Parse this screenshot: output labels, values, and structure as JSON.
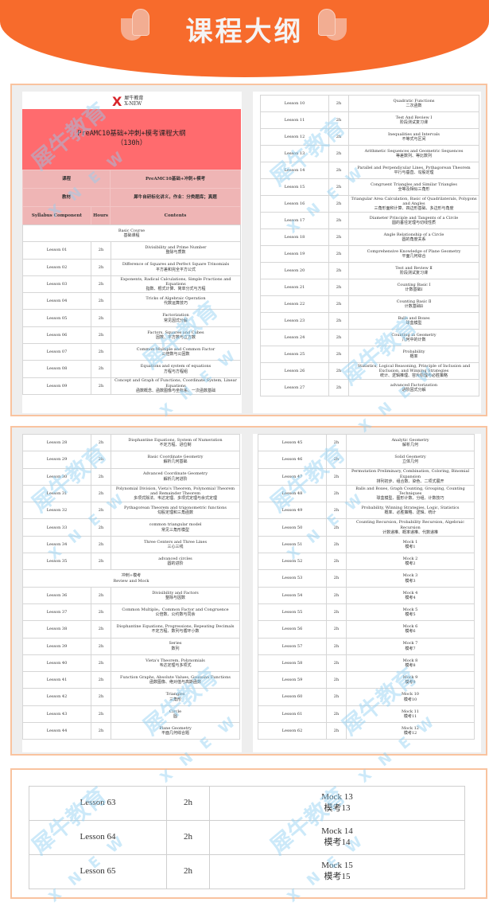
{
  "header": {
    "title": "课程大纲"
  },
  "logo": {
    "name": "犀牛教育",
    "sub": "X-NEW"
  },
  "watermark": {
    "text": "犀牛教育",
    "letters": "X N E W"
  },
  "syllabus": {
    "title_line1": "PreAMC10基础+冲刺+模考课程大纲",
    "title_line2": "（130h）",
    "course_label": "课程",
    "course_value": "PreAMC10基础+冲刺+模考",
    "material_label": "教材",
    "material_value": "犀牛自研标化讲义，作业：分类题库；真题",
    "col_component": "Syllabus Component",
    "col_hours": "Hours",
    "col_contents": "Contents"
  },
  "tables": {
    "p1l": [
      {
        "section_en": "Basic Course",
        "section_zh": "基础课程"
      },
      [
        "Lesson 01",
        "2h",
        "Divisibility and Prime Number",
        "整除与质数"
      ],
      [
        "Lesson 02",
        "2h",
        "Difference of Squares and Perfect Square Trinomials",
        "平方差和完全平方公式"
      ],
      [
        "Lesson 03",
        "2h",
        "Exponents, Radical Calculations, Simple Fractions and Equations",
        "指数、根式计算、简单分式与方程"
      ],
      [
        "Lesson 04",
        "2h",
        "Tricks of Algebraic Operation",
        "代数运算技巧"
      ],
      [
        "Lesson 05",
        "2h",
        "Factorization",
        "常见因式分解"
      ],
      [
        "Lesson 06",
        "2h",
        "Factors, Squares and Cubes",
        "因数、平方数与立方数"
      ],
      [
        "Lesson 07",
        "2h",
        "Common Multiple and Common Factor",
        "公倍数与公因数"
      ],
      [
        "Lesson 08",
        "2h",
        "Equations and system of equations",
        "方程与方程组"
      ],
      [
        "Lesson 09",
        "2h",
        "Concept and Graph of Functions, Coordinate System, Linear Equations",
        "函数概念、函数图像与坐标系、一次函数基础"
      ]
    ],
    "p1r": [
      [
        "Lesson 10",
        "2h",
        "Quadratic Functions",
        "二次函数"
      ],
      [
        "Lesson 11",
        "2h",
        "Test And Review Ⅰ",
        "阶段测试复习课"
      ],
      [
        "Lesson 12",
        "2h",
        "Inequalities and Intervals",
        "不等式与区间"
      ],
      [
        "Lesson 13",
        "2h",
        "Arithmetic Sequences and Geometric Sequences",
        "等差数列、等比数列"
      ],
      [
        "Lesson 14",
        "2h",
        "Parallel and Perpendicular Lines, Pythagorean Theorem",
        "平行与垂直、勾股定理"
      ],
      [
        "Lesson 15",
        "2h",
        "Congruent Triangles and Similar Triangles",
        "全等及相似三角形"
      ],
      [
        "Lesson 16",
        "2h",
        "Triangular Area Calculation, Basic of Quadrilaterals, Polygons and Angles",
        "三角形面积计算、四边形基础、多边形与角度"
      ],
      [
        "Lesson 17",
        "2h",
        "Diameter Principle and Tangents of a Circle",
        "圆的垂径定理与切线性质"
      ],
      [
        "Lesson 18",
        "2h",
        "Angle Relationship of a Circle",
        "圆的角度关系"
      ],
      [
        "Lesson 19",
        "2h",
        "Comprehensive Knowledge of Plane Geometry",
        "平面几何综合"
      ],
      [
        "Lesson 20",
        "2h",
        "Test and Review Ⅱ",
        "阶段测试复习课"
      ],
      [
        "Lesson 21",
        "2h",
        "Counting Basic Ⅰ",
        "计数基础Ⅰ"
      ],
      [
        "Lesson 22",
        "2h",
        "Counting Basic Ⅱ",
        "计数基础Ⅱ"
      ],
      [
        "Lesson 23",
        "2h",
        "Balls and Boxes",
        "球盒模型"
      ],
      [
        "Lesson 24",
        "2h",
        "Counting in Geometry",
        "几何中的计数"
      ],
      [
        "Lesson 25",
        "2h",
        "Probability",
        "概率"
      ],
      [
        "Lesson 26",
        "2h",
        "Statistics, Logical Reasoning, Principle of Inclusion and Exclusion, and Winning Strategies",
        "统计、逻辑推理、容斥原理与必胜策略"
      ],
      [
        "Lesson 27",
        "2h",
        "advanced Factorization",
        "进阶因式分解"
      ]
    ],
    "p2l": [
      [
        "Lesson 28",
        "2h",
        "Diophantine Equations, System of Numeration",
        "不定方程、进位制"
      ],
      [
        "Lesson 29",
        "2h",
        "Basic Coordinate Geometry",
        "解析几何基础"
      ],
      [
        "Lesson 30",
        "2h",
        "Advanced Coordinate Geometry",
        "解析几何进阶"
      ],
      [
        "Lesson 31",
        "2h",
        "Polynomial Division, Vieta's Theorem, Polynomial Theorem and Remainder Theorem",
        "多项式除法、韦达定理、多项式定理与余式定理"
      ],
      [
        "Lesson 32",
        "2h",
        "Pythagorean Theorem and trigonometric functions",
        "勾股定理和三角函数"
      ],
      [
        "Lesson 33",
        "2h",
        "common triangular model",
        "常见三角形模型"
      ],
      [
        "Lesson 34",
        "2h",
        "Three Centers and Three Lines",
        "三心三线"
      ],
      [
        "Lesson 35",
        "2h",
        "advanced circles",
        "圆的进阶"
      ],
      {
        "section_en": "Review and Mock",
        "section_zh": "冲刺+模考",
        "zh_first": true
      },
      [
        "Lesson 36",
        "2h",
        "Divisibility and Factors",
        "整除与因数"
      ],
      [
        "Lesson 37",
        "2h",
        "Common Multiple，Common Factor and Congruence",
        "公倍数、公约数与同余"
      ],
      [
        "Lesson 38",
        "2h",
        "Diophantine Equations, Progressions, Repeating Decimals",
        "不定方程、数列与循环小数"
      ],
      [
        "Lesson 39",
        "2h",
        "Series",
        "数列"
      ],
      [
        "Lesson 40",
        "2h",
        "Vieta's Theorem, Polynomials",
        "韦达定理与多项式"
      ],
      [
        "Lesson 41",
        "2h",
        "Function Graphs, Absolute Values, Gaussian Functions",
        "函数图像、绝对值与高斯函数"
      ],
      [
        "Lesson 42",
        "2h",
        "Triangles",
        "三角形"
      ],
      [
        "Lesson 43",
        "2h",
        "Circle",
        "圆"
      ],
      [
        "Lesson 44",
        "2h",
        "Plane Geometry",
        "平面几何综合题"
      ]
    ],
    "p2r": [
      [
        "Lesson 45",
        "2h",
        "Analytic Geometry",
        "解析几何"
      ],
      [
        "Lesson 46",
        "2h",
        "Solid Geometry",
        "立体几何"
      ],
      [
        "Lesson 47",
        "2h",
        "Permutation Preliminary, Combination, Coloring, Binomial Expansion",
        "排列初步、组合数、染色、二项式展开"
      ],
      [
        "Lesson 48",
        "2h",
        "Balls and Boxes, Graph Counting, Grouping, Counting Techniques",
        "球盒模型、图形计数、分组、计数技巧"
      ],
      [
        "Lesson 49",
        "2h",
        "Probability, Winning Strategies, Logic, Statistics",
        "概率、必胜策略、逻辑、统计"
      ],
      [
        "Lesson 50",
        "2h",
        "Counting Recursion, Probability Recursion, Algebraic Recursion",
        "计数递推、概率递推、代数递推"
      ],
      [
        "Lesson 51",
        "2h",
        "Mock 1",
        "模考1"
      ],
      [
        "Lesson 52",
        "2h",
        "Mock 2",
        "模考2"
      ],
      [
        "Lesson 53",
        "2h",
        "Mock 3",
        "模考3"
      ],
      [
        "Lesson 54",
        "2h",
        "Mock 4",
        "模考4"
      ],
      [
        "Lesson 55",
        "2h",
        "Mock 5",
        "模考5"
      ],
      [
        "Lesson 56",
        "2h",
        "Mock 6",
        "模考6"
      ],
      [
        "Lesson 57",
        "2h",
        "Mock 7",
        "模考7"
      ],
      [
        "Lesson 58",
        "2h",
        "Mock 8",
        "模考8"
      ],
      [
        "Lesson 59",
        "2h",
        "Mock 9",
        "模考9"
      ],
      [
        "Lesson 60",
        "2h",
        "Mock 10",
        "模考10"
      ],
      [
        "Lesson 61",
        "2h",
        "Mock 11",
        "模考11"
      ],
      [
        "Lesson 62",
        "2h",
        "Mock 12",
        "模考12"
      ]
    ],
    "p3": [
      [
        "Lesson 63",
        "2h",
        "Mock 13",
        "模考13"
      ],
      [
        "Lesson 64",
        "2h",
        "Mock 14",
        "模考14"
      ],
      [
        "Lesson 65",
        "2h",
        "Mock 15",
        "模考15"
      ]
    ]
  }
}
